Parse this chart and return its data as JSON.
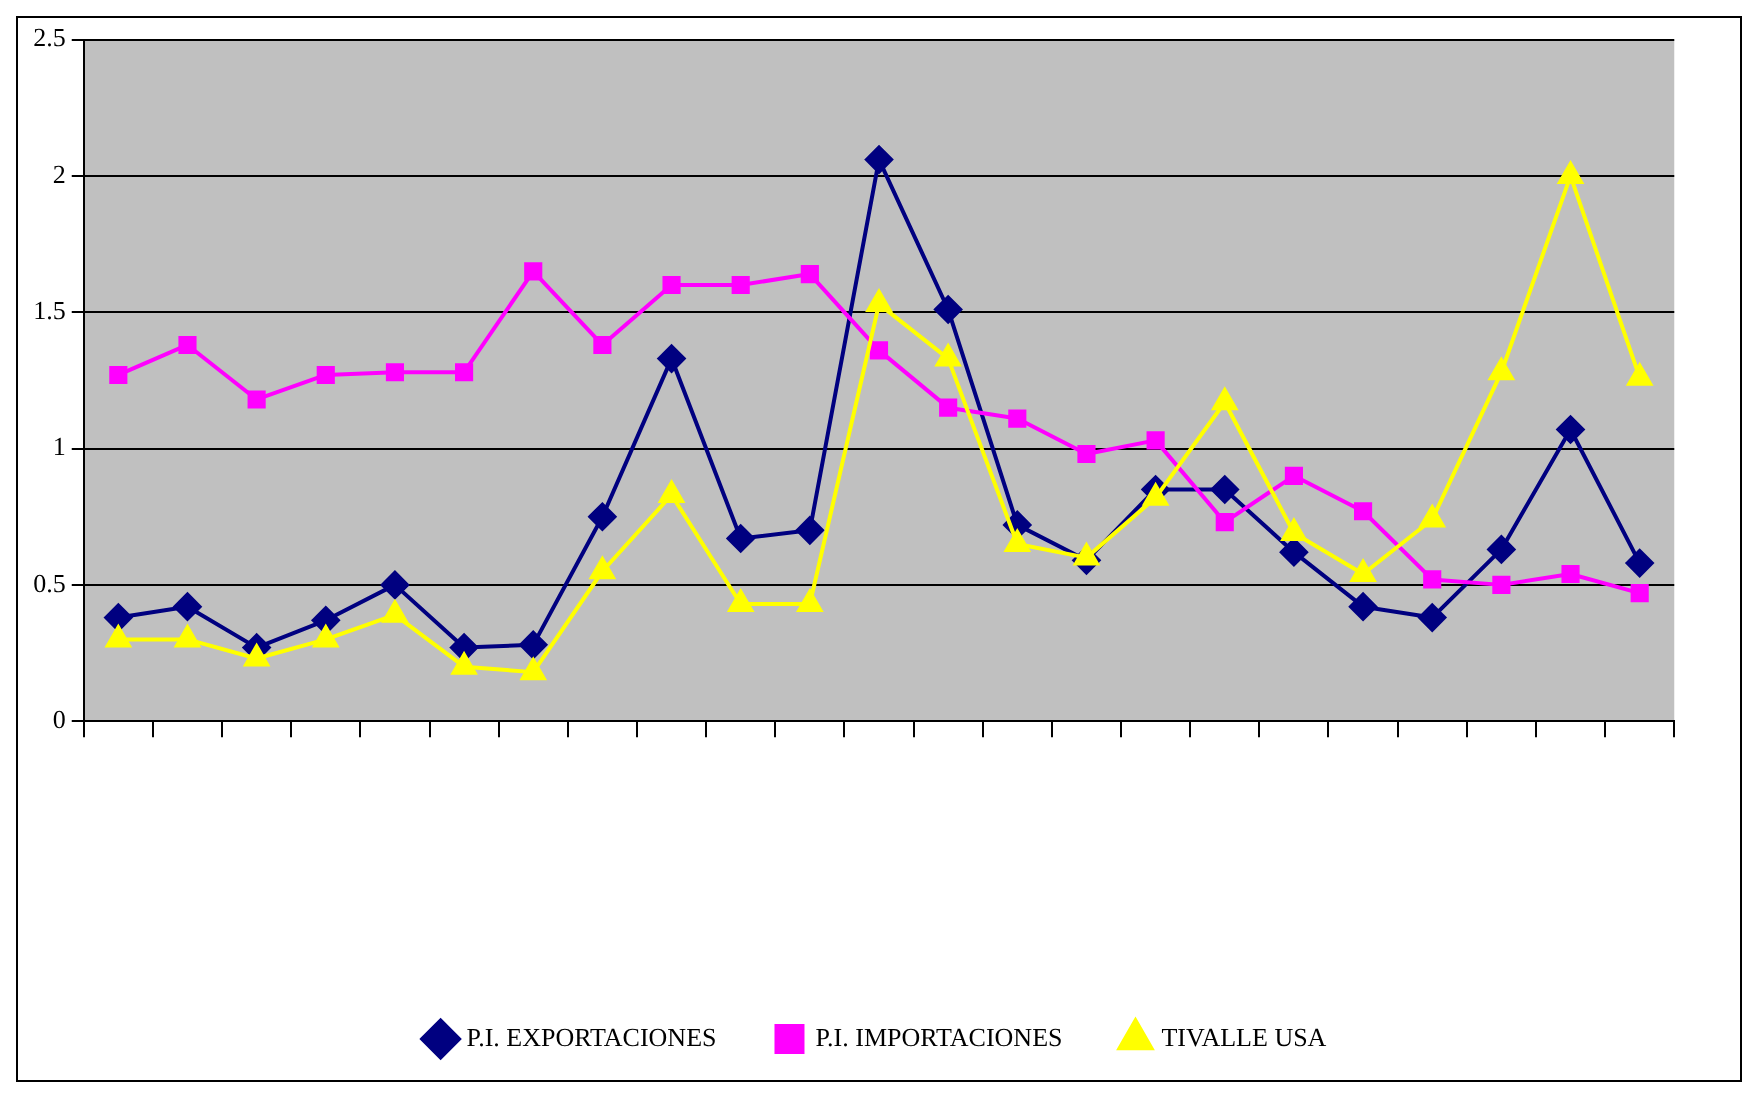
{
  "chart_data": {
    "type": "line",
    "categories": [
      null,
      null,
      null,
      null,
      null,
      null,
      null,
      null,
      null,
      null,
      null,
      null,
      null,
      null,
      null,
      null,
      null,
      null,
      null,
      null,
      null,
      null,
      null
    ],
    "series": [
      {
        "name": "P.I. EXPORTACIONES",
        "color": "#000080",
        "marker": "diamond",
        "values": [
          0.38,
          0.42,
          0.27,
          0.37,
          0.5,
          0.27,
          0.28,
          0.75,
          1.33,
          0.67,
          0.7,
          2.06,
          1.51,
          0.72,
          0.59,
          0.85,
          0.85,
          0.62,
          0.42,
          0.38,
          0.63,
          1.07,
          0.58
        ]
      },
      {
        "name": "P.I. IMPORTACIONES",
        "color": "#ff00ff",
        "marker": "square",
        "values": [
          1.27,
          1.38,
          1.18,
          1.27,
          1.28,
          1.28,
          1.65,
          1.38,
          1.6,
          1.6,
          1.64,
          1.36,
          1.15,
          1.11,
          0.98,
          1.03,
          0.73,
          0.9,
          0.77,
          0.52,
          0.5,
          0.54,
          0.47
        ]
      },
      {
        "name": "TIVALLE USA",
        "color": "#ffff00",
        "marker": "triangle",
        "values": [
          0.3,
          0.3,
          0.23,
          0.3,
          0.39,
          0.2,
          0.18,
          0.55,
          0.83,
          0.43,
          0.43,
          1.53,
          1.33,
          0.65,
          0.6,
          0.82,
          1.17,
          0.69,
          0.54,
          0.74,
          1.28,
          2.0,
          1.26
        ]
      }
    ],
    "ylim": [
      0,
      2.5
    ],
    "yticks": [
      0,
      0.5,
      1,
      1.5,
      2,
      2.5
    ],
    "grid": "y",
    "legend": "bottom",
    "line_style": "solid"
  }
}
